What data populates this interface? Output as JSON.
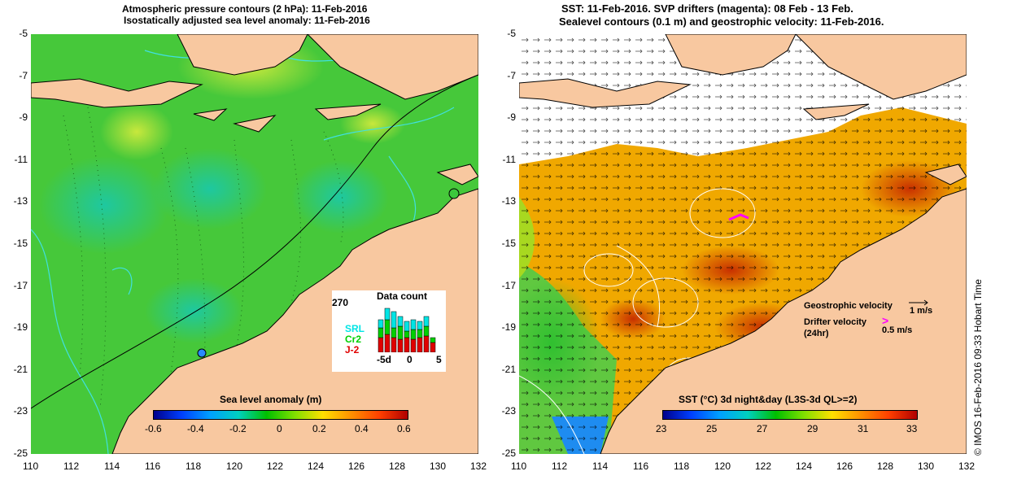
{
  "left_panel": {
    "title_line1": "Atmospheric pressure contours (2 hPa): 11-Feb-2016",
    "title_line2": "Isostatically adjusted sea level anomaly: 11-Feb-2016",
    "y_ticks": [
      "-5",
      "-7",
      "-9",
      "-11",
      "-13",
      "-15",
      "-17",
      "-19",
      "-21",
      "-23",
      "-25"
    ],
    "x_ticks": [
      "110",
      "112",
      "114",
      "116",
      "118",
      "120",
      "122",
      "124",
      "126",
      "128",
      "130",
      "132"
    ],
    "colorbar": {
      "title": "Sea level anomaly (m)",
      "ticks": [
        "-0.6",
        "-0.4",
        "-0.2",
        "0",
        "0.2",
        "0.4",
        "0.6"
      ],
      "range": [
        -0.6,
        0.6
      ]
    },
    "data_count": {
      "title": "Data count",
      "ymax": "270",
      "series": [
        "SRL",
        "Cr2",
        "J-2"
      ],
      "series_colors": [
        "#00e5e5",
        "#00d000",
        "#e00000"
      ],
      "x_labels": [
        "-5d",
        "0",
        "5"
      ]
    }
  },
  "right_panel": {
    "title_line1": "SST: 11-Feb-2016. SVP drifters (magenta): 08 Feb - 13 Feb.",
    "title_line2": "Sealevel contours (0.1 m) and geostrophic velocity: 11-Feb-2016.",
    "y_ticks": [
      "-5",
      "-7",
      "-9",
      "-11",
      "-13",
      "-15",
      "-17",
      "-19",
      "-21",
      "-23",
      "-25"
    ],
    "x_ticks": [
      "110",
      "112",
      "114",
      "116",
      "118",
      "120",
      "122",
      "124",
      "126",
      "128",
      "130",
      "132"
    ],
    "colorbar": {
      "title": "SST (°C) 3d night&day (L3S-3d QL>=2)",
      "ticks": [
        "23",
        "25",
        "27",
        "29",
        "31",
        "33"
      ],
      "range": [
        23,
        33
      ]
    },
    "legend": {
      "geo_label": "Geostrophic velocity",
      "geo_scale": "1 m/s",
      "drifter_label": "Drifter velocity",
      "drifter_sub": "(24hr)",
      "drifter_scale": "0.5 m/s",
      "drifter_symbol": ">"
    }
  },
  "credit": "© IMOS 16-Feb-2016 09:33 Hobart Time",
  "colors": {
    "land": "#f8c8a0",
    "sla_ocean": "#3cc83c",
    "sst_ocean": "#f0a000",
    "drifter": "#ff00ff"
  }
}
